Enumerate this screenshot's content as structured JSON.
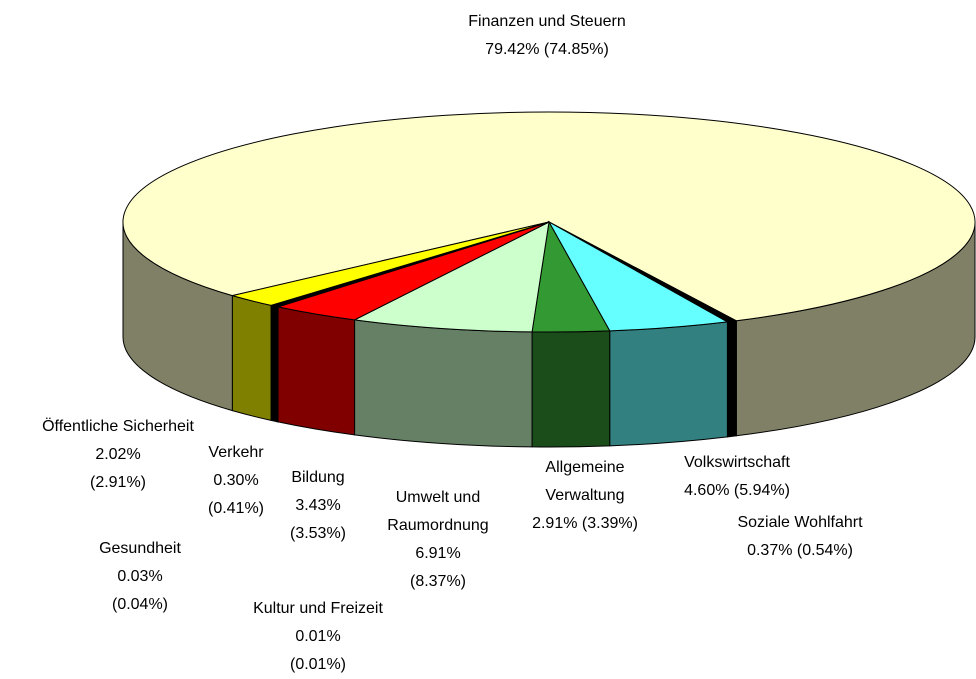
{
  "chart_data": {
    "type": "pie",
    "categories": [
      "Finanzen und Steuern",
      "Soziale Wohlfahrt",
      "Volkswirtschaft",
      "Allgemeine Verwaltung",
      "Umwelt und Raumordnung",
      "Bildung",
      "Kultur und Freizeit",
      "Gesundheit",
      "Verkehr",
      "Öffentliche Sicherheit"
    ],
    "values": [
      79.42,
      0.37,
      4.6,
      2.91,
      6.91,
      3.43,
      0.01,
      0.03,
      0.3,
      2.02
    ],
    "value_labels": [
      "79.42% (74.85%)",
      "0.37% (0.54%)",
      "4.60% (5.94%)",
      "2.91% (3.39%)",
      "6.91% (8.37%)",
      "3.43% (3.53%)",
      "0.01% (0.01%)",
      "0.03% (0.04%)",
      "0.30% (0.41%)",
      "2.02% (2.91%)"
    ],
    "colors": [
      "#ffffcc",
      "#000000",
      "#66ffff",
      "#339933",
      "#ccffcc",
      "#ff0000",
      "#666699",
      "#993366",
      "#000000",
      "#ffff00"
    ]
  }
}
